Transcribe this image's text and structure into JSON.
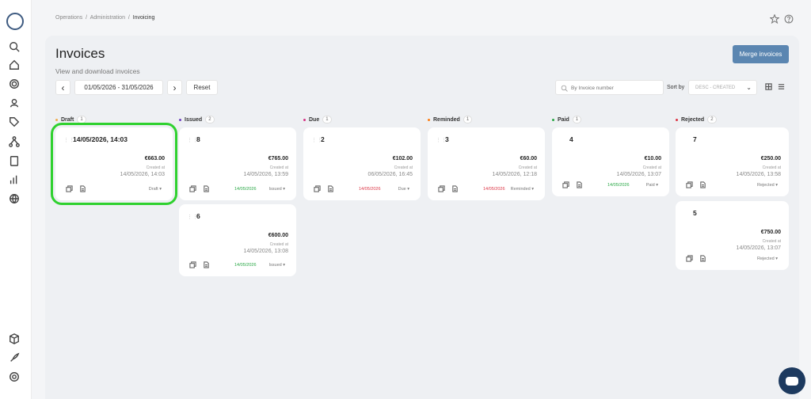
{
  "breadcrumb": {
    "items": [
      "Operations",
      "Administration"
    ],
    "current": "Invoicing",
    "sep": "/"
  },
  "page": {
    "title": "Invoices",
    "subtitle": "View and download invoices"
  },
  "toolbar": {
    "merge_label": "Merge invoices",
    "prev_symbol": "‹",
    "next_symbol": "›",
    "date_range": "01/05/2026 - 31/05/2026",
    "reset_label": "Reset",
    "search_placeholder": "By Invoice number",
    "sort_label": "Sort by",
    "sort_value": "DESC - CREATED"
  },
  "columns": [
    {
      "name": "Draft",
      "count": "1",
      "dot_color": "#f0ad4e"
    },
    {
      "name": "Issued",
      "count": "2",
      "dot_color": "#6f42c1"
    },
    {
      "name": "Due",
      "count": "1",
      "dot_color": "#d63384"
    },
    {
      "name": "Reminded",
      "count": "1",
      "dot_color": "#fd7e14"
    },
    {
      "name": "Paid",
      "count": "1",
      "dot_color": "#28a745"
    },
    {
      "name": "Rejected",
      "count": "2",
      "dot_color": "#dc3545"
    }
  ],
  "cards": [
    {
      "title": "14/05/2026, 14:03",
      "amount": "€663.00",
      "created_label": "Created at",
      "created": "14/05/2026, 14:03",
      "due": "",
      "due_color": "",
      "status": "Draft ▾",
      "handle": true,
      "selected": true
    },
    {
      "title": "8",
      "amount": "€765.00",
      "created_label": "Created at",
      "created": "14/05/2026, 13:59",
      "due": "14/05/2026",
      "due_color": "#28a745",
      "status": "Issued ▾",
      "handle": true,
      "selected": false
    },
    {
      "title": "6",
      "amount": "€600.00",
      "created_label": "Created at",
      "created": "14/05/2026, 13:08",
      "due": "14/05/2026",
      "due_color": "#28a745",
      "status": "Issued ▾",
      "handle": true,
      "selected": false
    },
    {
      "title": "2",
      "amount": "€102.00",
      "created_label": "Created at",
      "created": "06/05/2026, 16:45",
      "due": "14/05/2026",
      "due_color": "#dc3545",
      "status": "Due ▾",
      "handle": true,
      "selected": false
    },
    {
      "title": "3",
      "amount": "€60.00",
      "created_label": "Created at",
      "created": "14/05/2026, 12:18",
      "due": "14/05/2026",
      "due_color": "#dc3545",
      "status": "Reminded ▾",
      "handle": true,
      "selected": false
    },
    {
      "title": "4",
      "amount": "€10.00",
      "created_label": "Created at",
      "created": "14/05/2026, 13:07",
      "due": "14/05/2026",
      "due_color": "#28a745",
      "status": "Paid ▾",
      "handle": false,
      "selected": false
    },
    {
      "title": "7",
      "amount": "€250.00",
      "created_label": "Created at",
      "created": "14/05/2026, 13:58",
      "due": "",
      "due_color": "",
      "status": "Rejected ▾",
      "handle": false,
      "selected": false
    },
    {
      "title": "5",
      "amount": "€750.00",
      "created_label": "Created at",
      "created": "14/05/2026, 13:07",
      "due": "",
      "due_color": "",
      "status": "Rejected ▾",
      "handle": false,
      "selected": false
    }
  ],
  "icons": {
    "sidebar": [
      "logo-icon",
      "search-icon",
      "home-icon",
      "gear-icon",
      "user-icon",
      "tag-icon",
      "network-icon",
      "clipboard-icon",
      "chart-icon",
      "globe-icon",
      "box-icon",
      "rocket-icon",
      "support-icon"
    ],
    "top": [
      "star-icon",
      "help-icon"
    ],
    "chat": "chat-icon"
  },
  "colors": {
    "accent": "#5b86b1",
    "selected_outline": "#2fd12f",
    "chat_bg": "#1d3a5f"
  }
}
